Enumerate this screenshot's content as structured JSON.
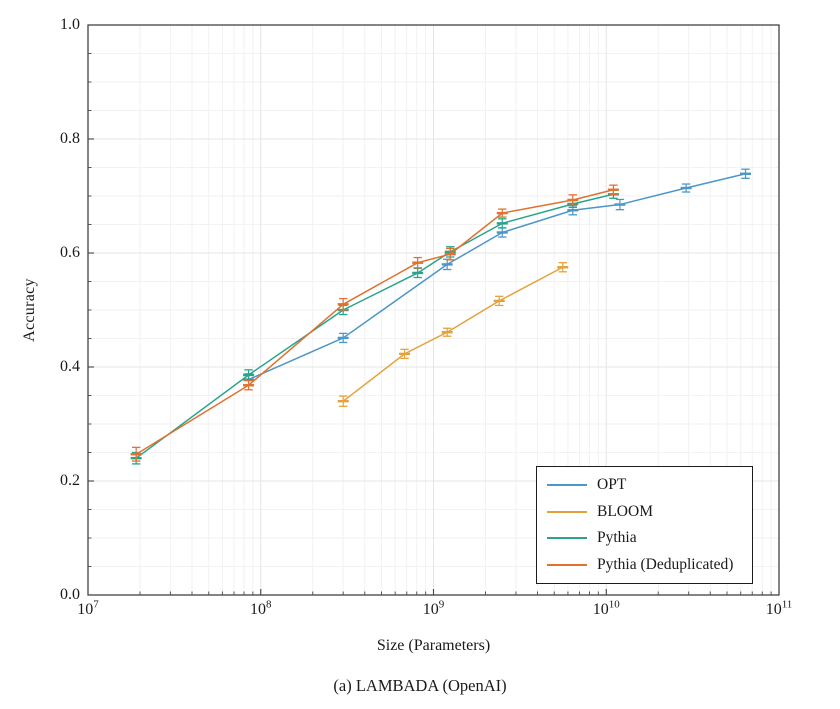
{
  "figure": {
    "caption": "(a) LAMBADA (OpenAI)"
  },
  "chart_data": {
    "type": "line",
    "title": "",
    "xlabel": "Size (Parameters)",
    "ylabel": "Accuracy",
    "caption": "(a) LAMBADA (OpenAI)",
    "x_scale": "log",
    "xlim": [
      10000000.0,
      100000000000.0
    ],
    "ylim": [
      0.0,
      1.0
    ],
    "x_tick_labels": [
      "10^7",
      "10^8",
      "10^9",
      "10^10",
      "10^11"
    ],
    "y_tick_labels": [
      "0.0",
      "0.2",
      "0.4",
      "0.6",
      "0.8",
      "1.0"
    ],
    "grid": "major and minor, very light gray",
    "legend_position": "lower-right",
    "error_bars": true,
    "series": [
      {
        "name": "OPT",
        "color": "#4c96c8",
        "x": [
          85000000.0,
          300000000.0,
          1200000000.0,
          2500000000.0,
          6400000000.0,
          12000000000.0,
          29000000000.0,
          64000000000.0
        ],
        "y": [
          0.378,
          0.451,
          0.58,
          0.636,
          0.675,
          0.685,
          0.714,
          0.739
        ],
        "err": [
          0.01,
          0.008,
          0.009,
          0.008,
          0.008,
          0.009,
          0.007,
          0.008
        ]
      },
      {
        "name": "BLOOM",
        "color": "#e3a23b",
        "x": [
          300000000.0,
          680000000.0,
          1200000000.0,
          2400000000.0,
          5600000000.0
        ],
        "y": [
          0.34,
          0.423,
          0.461,
          0.516,
          0.575
        ],
        "err": [
          0.009,
          0.008,
          0.007,
          0.008,
          0.008
        ]
      },
      {
        "name": "Pythia",
        "color": "#28a48b",
        "x": [
          19000000.0,
          85000000.0,
          300000000.0,
          810000000.0,
          1250000000.0,
          2500000000.0,
          6400000000.0,
          11000000000.0
        ],
        "y": [
          0.24,
          0.386,
          0.5,
          0.565,
          0.602,
          0.652,
          0.686,
          0.703
        ],
        "err": [
          0.01,
          0.009,
          0.008,
          0.008,
          0.009,
          0.008,
          0.006,
          0.007
        ]
      },
      {
        "name": "Pythia (Deduplicated)",
        "color": "#e0712e",
        "x": [
          19000000.0,
          85000000.0,
          300000000.0,
          810000000.0,
          1250000000.0,
          2500000000.0,
          6400000000.0,
          11000000000.0
        ],
        "y": [
          0.247,
          0.368,
          0.51,
          0.583,
          0.598,
          0.67,
          0.693,
          0.711
        ],
        "err": [
          0.012,
          0.008,
          0.01,
          0.009,
          0.01,
          0.007,
          0.009,
          0.008
        ]
      }
    ]
  }
}
